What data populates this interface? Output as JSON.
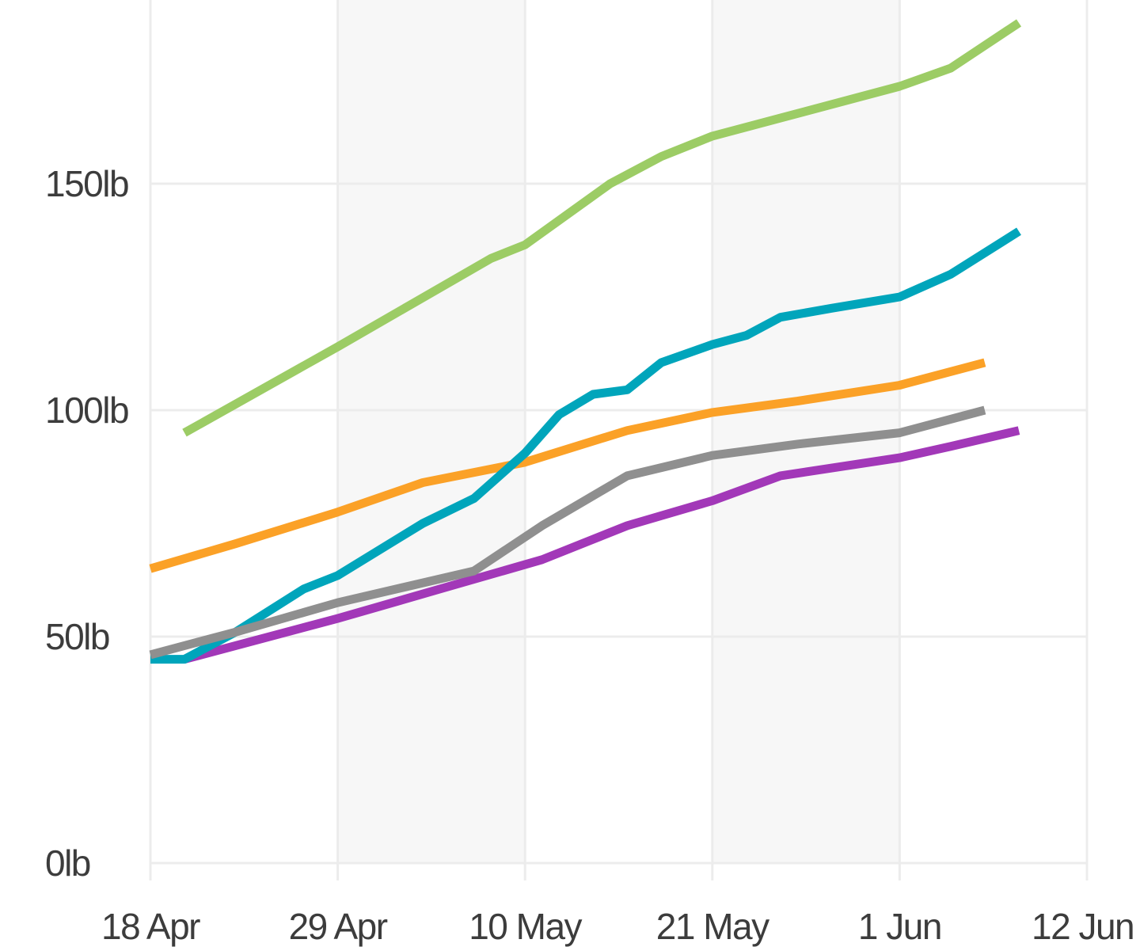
{
  "chart_data": {
    "type": "line",
    "title": "",
    "xlabel": "",
    "ylabel": "",
    "unit": "lb",
    "legend": "none",
    "grid": {
      "alternating_bands": true,
      "band_color": "#F7F7F7",
      "line_color": "#ECECEC",
      "background": "#FFFFFF"
    },
    "text_color": "#3C3C3C",
    "x_ticks": [
      {
        "day": 0,
        "label": "18 Apr"
      },
      {
        "day": 11,
        "label": "29 Apr"
      },
      {
        "day": 22,
        "label": "10 May"
      },
      {
        "day": 33,
        "label": "21 May"
      },
      {
        "day": 44,
        "label": "1 Jun"
      },
      {
        "day": 55,
        "label": "12 Jun"
      }
    ],
    "y_ticks": [
      {
        "value": 0,
        "label": "0lb"
      },
      {
        "value": 50,
        "label": "50lb"
      },
      {
        "value": 100,
        "label": "100lb"
      },
      {
        "value": 150,
        "label": "150lb"
      }
    ],
    "xlim_days": [
      0,
      55
    ],
    "ylim": [
      0,
      190
    ],
    "series": [
      {
        "name": "orange-line",
        "color": "#FBA127",
        "points_day_lb": [
          [
            0,
            65
          ],
          [
            5,
            70.5
          ],
          [
            11,
            77.5
          ],
          [
            16,
            84
          ],
          [
            22,
            88.5
          ],
          [
            28,
            95.5
          ],
          [
            33,
            99.5
          ],
          [
            38,
            102
          ],
          [
            44,
            105.5
          ],
          [
            49,
            110.5
          ]
        ]
      },
      {
        "name": "purple-line",
        "color": "#A238B8",
        "points_day_lb": [
          [
            2,
            45
          ],
          [
            11,
            54
          ],
          [
            17,
            60.5
          ],
          [
            23,
            67
          ],
          [
            28,
            74.5
          ],
          [
            33,
            80
          ],
          [
            37,
            85.5
          ],
          [
            44,
            89.5
          ],
          [
            47,
            92
          ],
          [
            51,
            95.5
          ]
        ]
      },
      {
        "name": "teal-line",
        "color": "#00A5BB",
        "points_day_lb": [
          [
            0,
            45
          ],
          [
            2,
            45
          ],
          [
            5,
            51
          ],
          [
            9,
            60.5
          ],
          [
            11,
            63.5
          ],
          [
            16,
            75
          ],
          [
            19,
            80.5
          ],
          [
            22,
            90.5
          ],
          [
            24,
            99
          ],
          [
            26,
            103.5
          ],
          [
            28,
            104.5
          ],
          [
            30,
            110.5
          ],
          [
            33,
            114.5
          ],
          [
            35,
            116.5
          ],
          [
            37,
            120.5
          ],
          [
            40,
            122.5
          ],
          [
            44,
            125
          ],
          [
            47,
            130
          ],
          [
            51,
            139.5
          ]
        ]
      },
      {
        "name": "gray-line",
        "color": "#8F8F8F",
        "points_day_lb": [
          [
            0,
            46
          ],
          [
            5,
            51
          ],
          [
            11,
            57.5
          ],
          [
            19,
            64.5
          ],
          [
            23,
            74.5
          ],
          [
            28,
            85.5
          ],
          [
            33,
            90
          ],
          [
            38,
            92.5
          ],
          [
            44,
            95
          ],
          [
            49,
            100
          ]
        ]
      },
      {
        "name": "green-line",
        "color": "#9CCC65",
        "points_day_lb": [
          [
            2,
            95
          ],
          [
            11,
            114
          ],
          [
            20,
            133.5
          ],
          [
            22,
            136.5
          ],
          [
            27,
            150
          ],
          [
            30,
            156
          ],
          [
            33,
            160.5
          ],
          [
            37,
            164.5
          ],
          [
            44,
            171.5
          ],
          [
            47,
            175.5
          ],
          [
            51,
            185.5
          ]
        ]
      }
    ]
  }
}
